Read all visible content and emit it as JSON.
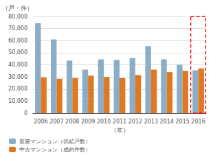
{
  "chart_data": {
    "type": "bar",
    "categories": [
      "2006",
      "2007",
      "2008",
      "2009",
      "2010",
      "2011",
      "2012",
      "2013",
      "2014",
      "2015",
      "2016"
    ],
    "series": [
      {
        "name": "新築マンション（供給戸数）",
        "color": "#8BADC7",
        "values": [
          74500,
          61000,
          43500,
          36000,
          44500,
          44000,
          45500,
          55500,
          44500,
          40000,
          35500
        ]
      },
      {
        "name": "中古マンション（成約件数）",
        "color": "#E07820",
        "values": [
          29500,
          28500,
          29000,
          31000,
          30000,
          29000,
          31500,
          36000,
          34000,
          35000,
          37000
        ]
      }
    ],
    "xlabel": "（年）",
    "ylabel": "（戸・件）",
    "ylim": [
      0,
      80000
    ],
    "yticks": [
      0,
      {
        "value": 10000,
        "label": "10,000"
      },
      {
        "value": 20000,
        "label": "20,000"
      },
      {
        "value": 30000,
        "label": "30,000"
      },
      {
        "value": 40000,
        "label": "40,000"
      },
      {
        "value": 50000,
        "label": "50,000"
      },
      {
        "value": 60000,
        "label": "60,000"
      },
      {
        "value": 70000,
        "label": "70,000"
      },
      {
        "value": 80000,
        "label": "80,000"
      }
    ],
    "grid": true,
    "legend": "lower left",
    "highlight": {
      "x": "2016",
      "color": "red"
    }
  }
}
